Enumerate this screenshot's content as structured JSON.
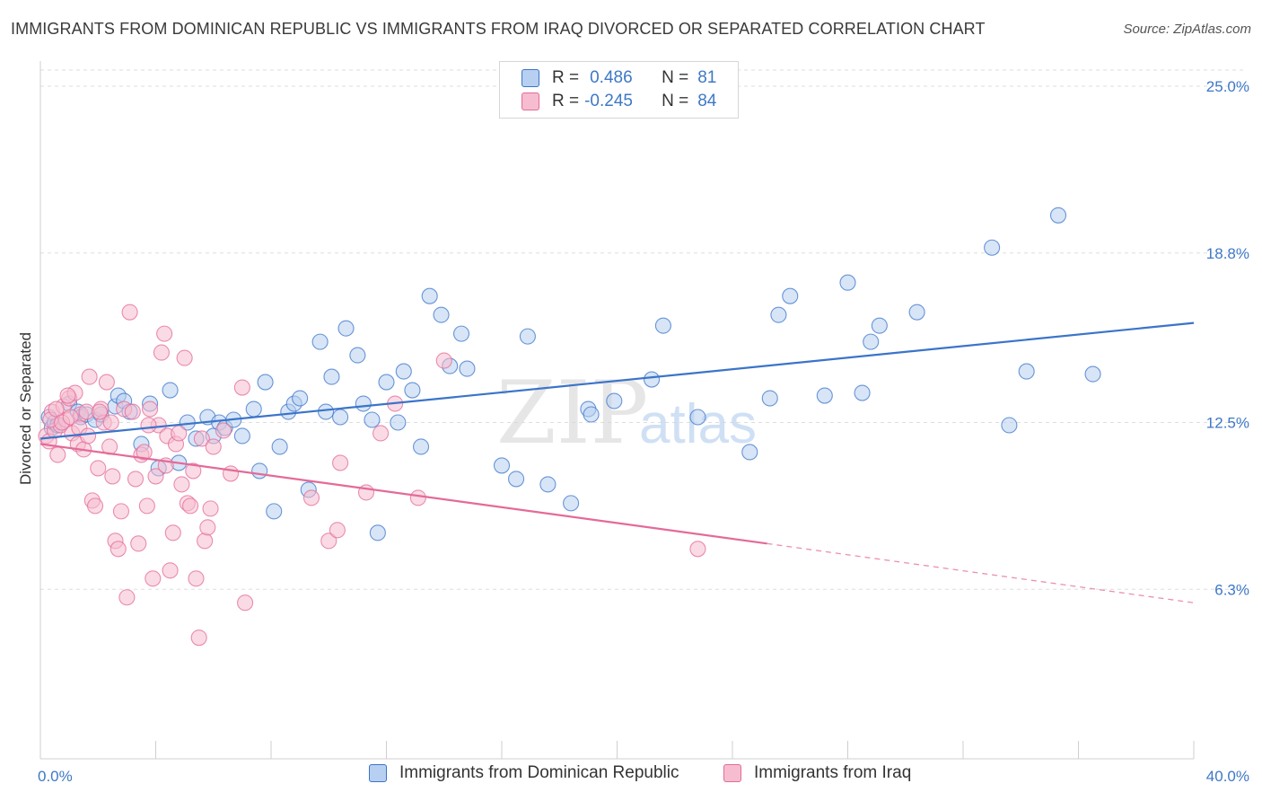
{
  "title": "IMMIGRANTS FROM DOMINICAN REPUBLIC VS IMMIGRANTS FROM IRAQ DIVORCED OR SEPARATED CORRELATION CHART",
  "source": "Source: ZipAtlas.com",
  "watermark": {
    "zip": "ZIP",
    "atlas": "atlas"
  },
  "colors": {
    "blue": "#3b74c9",
    "blue_fill": "#b7cff1",
    "pink": "#e46a97",
    "pink_fill": "#f6bdd0",
    "grid": "#dcdcdc",
    "axis_text": "#3e78c6"
  },
  "legend": {
    "r_label": "R =",
    "n_label": "N =",
    "series": [
      {
        "r": "0.486",
        "n": "81"
      },
      {
        "r": "-0.245",
        "n": "84"
      }
    ]
  },
  "chart_data": {
    "type": "scatter",
    "ylabel": "Divorced or Separated",
    "xlim": [
      0,
      40
    ],
    "ylim": [
      0,
      26.3
    ],
    "x_tick_labels": [
      "0.0%",
      "40.0%"
    ],
    "y_ticks": [
      6.3,
      12.5,
      18.8,
      25.0
    ],
    "y_tick_labels": [
      "6.3%",
      "12.5%",
      "18.8%",
      "25.0%"
    ],
    "grid": true,
    "series": [
      {
        "name": "Immigrants from Dominican Republic",
        "trend": {
          "x": [
            0,
            40
          ],
          "y": [
            11.9,
            16.2
          ],
          "dashed_from": null
        },
        "points": [
          [
            0.3,
            12.7
          ],
          [
            0.4,
            12.3
          ],
          [
            0.5,
            12.5
          ],
          [
            0.6,
            12.4
          ],
          [
            1.0,
            13.2
          ],
          [
            1.3,
            12.9
          ],
          [
            1.4,
            12.7
          ],
          [
            1.6,
            12.8
          ],
          [
            1.9,
            12.6
          ],
          [
            2.1,
            12.8
          ],
          [
            2.6,
            13.1
          ],
          [
            2.7,
            13.5
          ],
          [
            2.9,
            13.3
          ],
          [
            3.1,
            12.9
          ],
          [
            3.5,
            11.7
          ],
          [
            3.8,
            13.2
          ],
          [
            4.1,
            10.8
          ],
          [
            4.5,
            13.7
          ],
          [
            4.8,
            11.0
          ],
          [
            5.1,
            12.5
          ],
          [
            5.4,
            11.9
          ],
          [
            5.8,
            12.7
          ],
          [
            6.0,
            12.0
          ],
          [
            6.2,
            12.5
          ],
          [
            6.4,
            12.3
          ],
          [
            6.7,
            12.6
          ],
          [
            7.0,
            12.0
          ],
          [
            7.4,
            13.0
          ],
          [
            7.6,
            10.7
          ],
          [
            7.8,
            14.0
          ],
          [
            8.1,
            9.2
          ],
          [
            8.3,
            11.6
          ],
          [
            8.6,
            12.9
          ],
          [
            8.8,
            13.2
          ],
          [
            9.0,
            13.4
          ],
          [
            9.3,
            10.0
          ],
          [
            9.7,
            15.5
          ],
          [
            9.9,
            12.9
          ],
          [
            10.1,
            14.2
          ],
          [
            10.4,
            12.7
          ],
          [
            10.6,
            16.0
          ],
          [
            11.0,
            15.0
          ],
          [
            11.2,
            13.2
          ],
          [
            11.5,
            12.6
          ],
          [
            11.7,
            8.4
          ],
          [
            12.0,
            14.0
          ],
          [
            12.4,
            12.5
          ],
          [
            12.6,
            14.4
          ],
          [
            12.9,
            13.7
          ],
          [
            13.2,
            11.6
          ],
          [
            13.5,
            17.2
          ],
          [
            13.9,
            16.5
          ],
          [
            14.2,
            14.6
          ],
          [
            14.6,
            15.8
          ],
          [
            14.8,
            14.5
          ],
          [
            16.0,
            10.9
          ],
          [
            16.5,
            10.4
          ],
          [
            16.9,
            15.7
          ],
          [
            17.6,
            10.2
          ],
          [
            18.4,
            9.5
          ],
          [
            19.0,
            13.0
          ],
          [
            19.1,
            12.8
          ],
          [
            19.9,
            13.3
          ],
          [
            21.2,
            14.1
          ],
          [
            21.6,
            16.1
          ],
          [
            22.8,
            12.7
          ],
          [
            24.6,
            11.4
          ],
          [
            25.3,
            13.4
          ],
          [
            25.6,
            16.5
          ],
          [
            26.0,
            17.2
          ],
          [
            27.2,
            13.5
          ],
          [
            28.0,
            17.7
          ],
          [
            28.5,
            13.6
          ],
          [
            28.8,
            15.5
          ],
          [
            29.1,
            16.1
          ],
          [
            30.4,
            16.6
          ],
          [
            33.0,
            19.0
          ],
          [
            33.6,
            12.4
          ],
          [
            34.2,
            14.4
          ],
          [
            35.3,
            20.2
          ],
          [
            36.5,
            14.3
          ]
        ]
      },
      {
        "name": "Immigrants from Iraq",
        "trend": {
          "x": [
            0,
            25.2,
            40
          ],
          "y": [
            11.7,
            8.0,
            5.8
          ],
          "dashed_from": 25.2
        },
        "points": [
          [
            0.2,
            12.0
          ],
          [
            0.3,
            11.8
          ],
          [
            0.4,
            12.9
          ],
          [
            0.5,
            12.2
          ],
          [
            0.6,
            11.3
          ],
          [
            0.7,
            12.4
          ],
          [
            0.8,
            13.1
          ],
          [
            0.9,
            12.6
          ],
          [
            1.0,
            13.4
          ],
          [
            1.1,
            12.1
          ],
          [
            1.2,
            13.6
          ],
          [
            1.3,
            11.7
          ],
          [
            1.4,
            12.8
          ],
          [
            1.5,
            11.5
          ],
          [
            1.6,
            12.9
          ],
          [
            1.7,
            14.2
          ],
          [
            1.8,
            9.6
          ],
          [
            1.9,
            9.4
          ],
          [
            2.0,
            10.8
          ],
          [
            2.1,
            13.0
          ],
          [
            2.2,
            12.5
          ],
          [
            2.3,
            14.0
          ],
          [
            2.4,
            11.6
          ],
          [
            2.5,
            10.5
          ],
          [
            2.6,
            8.1
          ],
          [
            2.7,
            7.8
          ],
          [
            2.8,
            9.2
          ],
          [
            2.9,
            13.0
          ],
          [
            3.0,
            6.0
          ],
          [
            3.1,
            16.6
          ],
          [
            3.2,
            12.9
          ],
          [
            3.3,
            10.4
          ],
          [
            3.4,
            8.0
          ],
          [
            3.5,
            11.3
          ],
          [
            3.6,
            11.4
          ],
          [
            3.7,
            9.4
          ],
          [
            3.8,
            13.0
          ],
          [
            3.9,
            6.7
          ],
          [
            4.0,
            10.5
          ],
          [
            4.1,
            12.4
          ],
          [
            4.2,
            15.1
          ],
          [
            4.3,
            15.8
          ],
          [
            4.4,
            12.0
          ],
          [
            4.5,
            7.0
          ],
          [
            4.6,
            8.4
          ],
          [
            4.7,
            11.7
          ],
          [
            4.8,
            12.1
          ],
          [
            4.9,
            10.2
          ],
          [
            5.0,
            14.9
          ],
          [
            5.1,
            9.5
          ],
          [
            5.2,
            9.4
          ],
          [
            5.3,
            10.7
          ],
          [
            5.4,
            6.7
          ],
          [
            5.5,
            4.5
          ],
          [
            5.6,
            11.9
          ],
          [
            5.7,
            8.1
          ],
          [
            5.8,
            8.6
          ],
          [
            5.9,
            9.3
          ],
          [
            6.0,
            11.6
          ],
          [
            6.6,
            10.6
          ],
          [
            7.0,
            13.8
          ],
          [
            7.1,
            5.8
          ],
          [
            9.4,
            9.7
          ],
          [
            10.0,
            8.1
          ],
          [
            10.3,
            8.5
          ],
          [
            10.4,
            11.0
          ],
          [
            11.3,
            9.9
          ],
          [
            11.8,
            12.1
          ],
          [
            12.3,
            13.2
          ],
          [
            13.1,
            9.7
          ],
          [
            14.0,
            14.8
          ],
          [
            22.8,
            7.8
          ],
          [
            0.35,
            12.6
          ],
          [
            0.55,
            13.0
          ],
          [
            0.75,
            12.5
          ],
          [
            1.05,
            12.7
          ],
          [
            1.35,
            12.3
          ],
          [
            1.65,
            12.0
          ],
          [
            2.05,
            12.9
          ],
          [
            2.45,
            12.5
          ],
          [
            3.75,
            12.4
          ],
          [
            4.35,
            10.9
          ],
          [
            6.35,
            12.2
          ],
          [
            0.95,
            13.5
          ]
        ]
      }
    ]
  }
}
